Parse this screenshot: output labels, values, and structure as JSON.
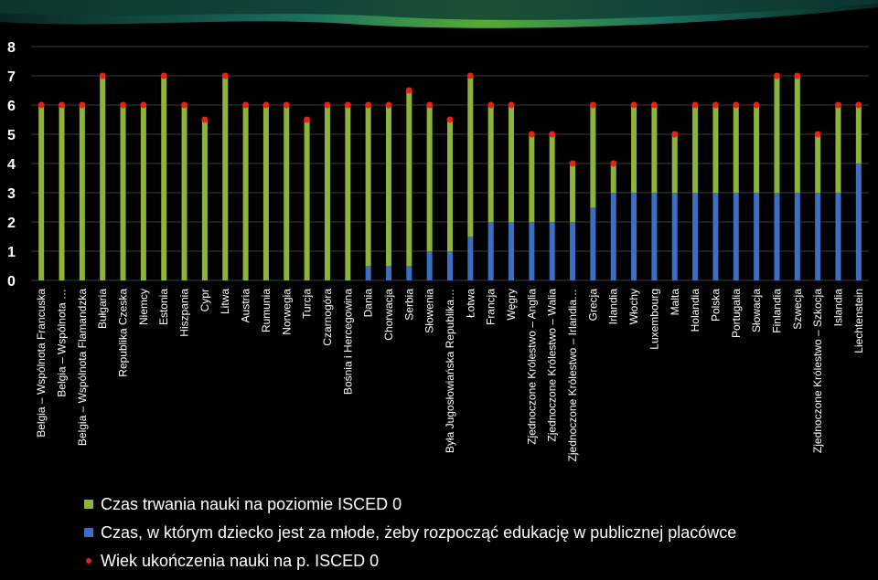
{
  "colors": {
    "background": "#000000",
    "isced0_duration": "#8db33a",
    "public_start": "#3a6fc4",
    "end_age_marker": "#e8201e",
    "gridline": "#3a3a3a",
    "decorative_band": "#1e7d6a"
  },
  "legend": {
    "items": [
      {
        "marker": "green-square",
        "label": "Czas trwania nauki na poziomie ISCED 0"
      },
      {
        "marker": "blue-square",
        "label": "Czas, w którym dziecko jest za młode, żeby rozpocząć edukację w publicznej placówce"
      },
      {
        "marker": "red-dot",
        "label": "Wiek ukończenia nauki na p. ISCED 0"
      }
    ]
  },
  "chart_data": {
    "type": "bar",
    "stacked": true,
    "grid": true,
    "ylim": [
      0,
      8
    ],
    "yticks": [
      "0",
      "1",
      "2",
      "3",
      "4",
      "5",
      "6",
      "7",
      "8"
    ],
    "categories": [
      "Belgia – Wspólnota Francuska",
      "Belgia – Wspólnota …",
      "Belgia – Wspólnota Flamandzka",
      "Bułgaria",
      "Republika Czeska",
      "Niemcy",
      "Estonia",
      "Hiszpania",
      "Cypr",
      "Litwa",
      "Austria",
      "Rumunia",
      "Norwegia",
      "Turcja",
      "Czarnogóra",
      "Bośnia i Hercegowina",
      "Dania",
      "Chorwacja",
      "Serbia",
      "Słowenia",
      "Była Jugosłowiańska Republika…",
      "Łotwa",
      "Francja",
      "Węgry",
      "Zjednoczone Królestwo – Anglia",
      "Zjednoczone Królestwo – Walia",
      "Zjednoczone Królestwo – Irlandia…",
      "Grecja",
      "Irlandia",
      "Włochy",
      "Luxembourg",
      "Malta",
      "Holandia",
      "Polska",
      "Portugalia",
      "Słowacja",
      "Finlandia",
      "Szwecja",
      "Zjednoczone Królestwo – Szkocja",
      "Islandia",
      "Liechtenstein"
    ],
    "series": [
      {
        "name": "Czas, w którym dziecko jest za młode, żeby rozpocząć edukację w publicznej placówce",
        "values": [
          0,
          0,
          0,
          0,
          0,
          0,
          0,
          0,
          0,
          0,
          0,
          0,
          0,
          0,
          0,
          0,
          0.5,
          0.5,
          0.5,
          1,
          1,
          1.5,
          2,
          2,
          2,
          2,
          2,
          2.5,
          3,
          3,
          3,
          3,
          3,
          3,
          3,
          3,
          3,
          3,
          3,
          3,
          4
        ]
      },
      {
        "name": "Czas trwania nauki na poziomie ISCED 0",
        "values": [
          6,
          6,
          6,
          7,
          6,
          6,
          7,
          6,
          5.5,
          7,
          6,
          6,
          6,
          5.5,
          6,
          6,
          5.5,
          5.5,
          6,
          5,
          4.5,
          5.5,
          4,
          4,
          3,
          3,
          2,
          3.5,
          1,
          3,
          3,
          2,
          3,
          3,
          3,
          3,
          4,
          4,
          2,
          3,
          2
        ]
      },
      {
        "name": "Wiek ukończenia nauki na p. ISCED 0",
        "type": "scatter",
        "values": [
          6,
          6,
          6,
          7,
          6,
          6,
          7,
          6,
          5.5,
          7,
          6,
          6,
          6,
          5.5,
          6,
          6,
          6,
          6,
          6.5,
          6,
          5.5,
          7,
          6,
          6,
          5,
          5,
          4,
          6,
          4,
          6,
          6,
          5,
          6,
          6,
          6,
          6,
          7,
          7,
          5,
          6,
          6
        ]
      }
    ]
  }
}
